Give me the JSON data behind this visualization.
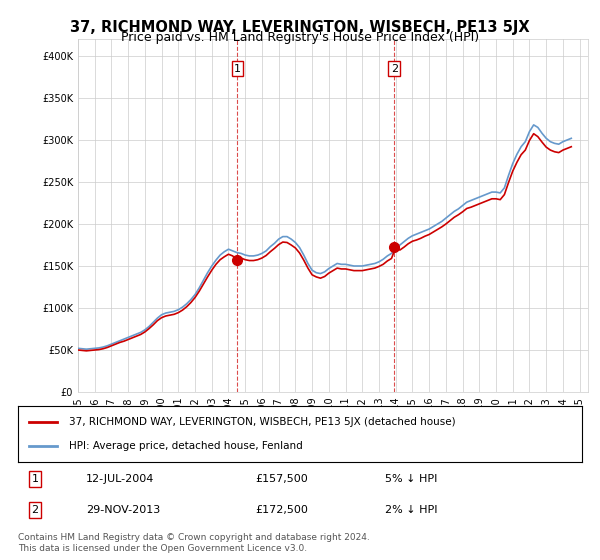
{
  "title": "37, RICHMOND WAY, LEVERINGTON, WISBECH, PE13 5JX",
  "subtitle": "Price paid vs. HM Land Registry's House Price Index (HPI)",
  "ylabel_ticks": [
    "£0",
    "£50K",
    "£100K",
    "£150K",
    "£200K",
    "£250K",
    "£300K",
    "£350K",
    "£400K"
  ],
  "ytick_values": [
    0,
    50000,
    100000,
    150000,
    200000,
    250000,
    300000,
    350000,
    400000
  ],
  "ylim": [
    0,
    420000
  ],
  "xlim_start": 1995.0,
  "xlim_end": 2025.5,
  "sale1_x": 2004.53,
  "sale1_y": 157500,
  "sale1_label": "1",
  "sale1_date": "12-JUL-2004",
  "sale1_price": "£157,500",
  "sale1_hpi": "5% ↓ HPI",
  "sale2_x": 2013.91,
  "sale2_y": 172500,
  "sale2_label": "2",
  "sale2_date": "29-NOV-2013",
  "sale2_price": "£172,500",
  "sale2_hpi": "2% ↓ HPI",
  "line_color_property": "#cc0000",
  "line_color_hpi": "#6699cc",
  "marker_color": "#cc0000",
  "grid_color": "#cccccc",
  "background_color": "#ffffff",
  "legend_label_property": "37, RICHMOND WAY, LEVERINGTON, WISBECH, PE13 5JX (detached house)",
  "legend_label_hpi": "HPI: Average price, detached house, Fenland",
  "footnote": "Contains HM Land Registry data © Crown copyright and database right 2024.\nThis data is licensed under the Open Government Licence v3.0.",
  "hpi_data_x": [
    1995.0,
    1995.25,
    1995.5,
    1995.75,
    1996.0,
    1996.25,
    1996.5,
    1996.75,
    1997.0,
    1997.25,
    1997.5,
    1997.75,
    1998.0,
    1998.25,
    1998.5,
    1998.75,
    1999.0,
    1999.25,
    1999.5,
    1999.75,
    2000.0,
    2000.25,
    2000.5,
    2000.75,
    2001.0,
    2001.25,
    2001.5,
    2001.75,
    2002.0,
    2002.25,
    2002.5,
    2002.75,
    2003.0,
    2003.25,
    2003.5,
    2003.75,
    2004.0,
    2004.25,
    2004.5,
    2004.75,
    2005.0,
    2005.25,
    2005.5,
    2005.75,
    2006.0,
    2006.25,
    2006.5,
    2006.75,
    2007.0,
    2007.25,
    2007.5,
    2007.75,
    2008.0,
    2008.25,
    2008.5,
    2008.75,
    2009.0,
    2009.25,
    2009.5,
    2009.75,
    2010.0,
    2010.25,
    2010.5,
    2010.75,
    2011.0,
    2011.25,
    2011.5,
    2011.75,
    2012.0,
    2012.25,
    2012.5,
    2012.75,
    2013.0,
    2013.25,
    2013.5,
    2013.75,
    2014.0,
    2014.25,
    2014.5,
    2014.75,
    2015.0,
    2015.25,
    2015.5,
    2015.75,
    2016.0,
    2016.25,
    2016.5,
    2016.75,
    2017.0,
    2017.25,
    2017.5,
    2017.75,
    2018.0,
    2018.25,
    2018.5,
    2018.75,
    2019.0,
    2019.25,
    2019.5,
    2019.75,
    2020.0,
    2020.25,
    2020.5,
    2020.75,
    2021.0,
    2021.25,
    2021.5,
    2021.75,
    2022.0,
    2022.25,
    2022.5,
    2022.75,
    2023.0,
    2023.25,
    2023.5,
    2023.75,
    2024.0,
    2024.25,
    2024.5
  ],
  "hpi_data_y": [
    52000,
    51500,
    51000,
    51500,
    52000,
    52500,
    53500,
    55000,
    57000,
    59000,
    61000,
    63000,
    65000,
    67000,
    69000,
    71000,
    74000,
    78000,
    83000,
    88000,
    92000,
    94000,
    95000,
    96000,
    98000,
    101000,
    105000,
    110000,
    116000,
    124000,
    133000,
    142000,
    150000,
    157000,
    163000,
    167000,
    170000,
    168000,
    166000,
    165000,
    163000,
    162000,
    162000,
    163000,
    165000,
    168000,
    173000,
    177000,
    182000,
    185000,
    185000,
    182000,
    178000,
    172000,
    163000,
    153000,
    145000,
    142000,
    141000,
    143000,
    147000,
    150000,
    153000,
    152000,
    152000,
    151000,
    150000,
    150000,
    150000,
    151000,
    152000,
    153000,
    155000,
    158000,
    162000,
    165000,
    170000,
    175000,
    179000,
    183000,
    186000,
    188000,
    190000,
    192000,
    194000,
    197000,
    200000,
    203000,
    207000,
    211000,
    215000,
    218000,
    222000,
    226000,
    228000,
    230000,
    232000,
    234000,
    236000,
    238000,
    238000,
    237000,
    243000,
    258000,
    272000,
    283000,
    292000,
    298000,
    310000,
    318000,
    315000,
    308000,
    302000,
    298000,
    296000,
    295000,
    298000,
    300000,
    302000
  ],
  "prop_data_x": [
    1995.0,
    1995.25,
    1995.5,
    1995.75,
    1996.0,
    1996.25,
    1996.5,
    1996.75,
    1997.0,
    1997.25,
    1997.5,
    1997.75,
    1998.0,
    1998.25,
    1998.5,
    1998.75,
    1999.0,
    1999.25,
    1999.5,
    1999.75,
    2000.0,
    2000.25,
    2000.5,
    2000.75,
    2001.0,
    2001.25,
    2001.5,
    2001.75,
    2002.0,
    2002.25,
    2002.5,
    2002.75,
    2003.0,
    2003.25,
    2003.5,
    2003.75,
    2004.0,
    2004.25,
    2004.5,
    2004.75,
    2005.0,
    2005.25,
    2005.5,
    2005.75,
    2006.0,
    2006.25,
    2006.5,
    2006.75,
    2007.0,
    2007.25,
    2007.5,
    2007.75,
    2008.0,
    2008.25,
    2008.5,
    2008.75,
    2009.0,
    2009.25,
    2009.5,
    2009.75,
    2010.0,
    2010.25,
    2010.5,
    2010.75,
    2011.0,
    2011.25,
    2011.5,
    2011.75,
    2012.0,
    2012.25,
    2012.5,
    2012.75,
    2013.0,
    2013.25,
    2013.5,
    2013.75,
    2014.0,
    2014.25,
    2014.5,
    2014.75,
    2015.0,
    2015.25,
    2015.5,
    2015.75,
    2016.0,
    2016.25,
    2016.5,
    2016.75,
    2017.0,
    2017.25,
    2017.5,
    2017.75,
    2018.0,
    2018.25,
    2018.5,
    2018.75,
    2019.0,
    2019.25,
    2019.5,
    2019.75,
    2020.0,
    2020.25,
    2020.5,
    2020.75,
    2021.0,
    2021.25,
    2021.5,
    2021.75,
    2022.0,
    2022.25,
    2022.5,
    2022.75,
    2023.0,
    2023.25,
    2023.5,
    2023.75,
    2024.0,
    2024.25,
    2024.5
  ],
  "prop_data_y": [
    50000,
    49500,
    49000,
    49500,
    50000,
    50500,
    51500,
    53000,
    55000,
    57000,
    59000,
    60500,
    62500,
    64500,
    66500,
    68500,
    71500,
    75500,
    80000,
    85000,
    88500,
    90500,
    91500,
    92500,
    94500,
    97500,
    101500,
    106500,
    112500,
    120000,
    128500,
    137000,
    145000,
    152000,
    157500,
    161000,
    164000,
    162000,
    157500,
    159500,
    157500,
    156500,
    156500,
    157500,
    159500,
    162500,
    167000,
    171000,
    175500,
    178500,
    178000,
    175000,
    171500,
    165500,
    157000,
    147500,
    139500,
    137000,
    135500,
    137500,
    141500,
    144500,
    147500,
    146500,
    146500,
    145500,
    144500,
    144500,
    144500,
    145500,
    146500,
    147500,
    149500,
    152000,
    156000,
    159000,
    172500,
    169000,
    172500,
    176500,
    179500,
    181000,
    183000,
    185500,
    187500,
    190500,
    193500,
    196500,
    200000,
    204000,
    208000,
    211000,
    214500,
    218500,
    220000,
    222000,
    224000,
    226000,
    228000,
    230000,
    230000,
    229000,
    235000,
    249500,
    263000,
    273500,
    282500,
    288000,
    299500,
    307500,
    304000,
    297500,
    291500,
    288000,
    286000,
    285000,
    288000,
    290000,
    292000
  ]
}
